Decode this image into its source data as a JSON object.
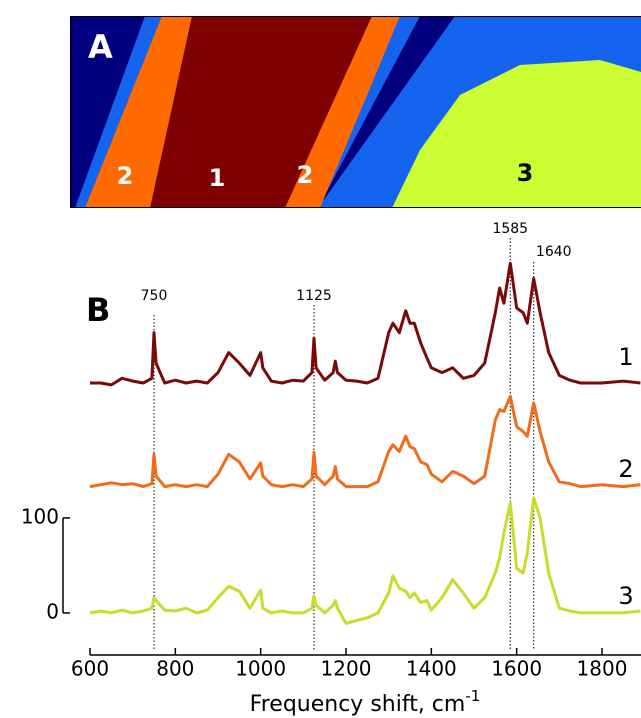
{
  "map": {
    "panel_label": "A",
    "region_labels": [
      "2",
      "1",
      "2",
      "3"
    ]
  },
  "chart_data": {
    "type": "line",
    "panel_label": "B",
    "xlabel": "Frequency shift, cm",
    "xlabel_superscript": "-1",
    "x": [
      600,
      625,
      650,
      675,
      700,
      725,
      745,
      750,
      755,
      775,
      800,
      825,
      850,
      875,
      900,
      925,
      950,
      975,
      1000,
      1005,
      1025,
      1050,
      1075,
      1100,
      1120,
      1125,
      1130,
      1150,
      1170,
      1175,
      1180,
      1200,
      1225,
      1250,
      1275,
      1300,
      1310,
      1325,
      1340,
      1350,
      1360,
      1375,
      1390,
      1400,
      1425,
      1450,
      1475,
      1500,
      1525,
      1550,
      1560,
      1570,
      1585,
      1600,
      1615,
      1625,
      1640,
      1655,
      1675,
      1700,
      1725,
      1750,
      1800,
      1850,
      1890
    ],
    "series": [
      {
        "name": "1",
        "color": "#7a0a0a",
        "values": [
          242,
          242,
          240,
          247,
          244,
          242,
          247,
          295,
          263,
          242,
          245,
          242,
          244,
          242,
          253,
          274,
          263,
          250,
          274,
          258,
          244,
          242,
          245,
          244,
          253,
          289,
          258,
          245,
          253,
          265,
          253,
          245,
          244,
          242,
          247,
          295,
          305,
          295,
          318,
          305,
          305,
          284,
          268,
          258,
          253,
          258,
          247,
          250,
          263,
          316,
          342,
          326,
          368,
          321,
          316,
          305,
          352,
          316,
          274,
          250,
          245,
          242,
          242,
          244,
          242
        ]
      },
      {
        "name": "2",
        "color": "#f26a1b",
        "values": [
          133,
          135,
          137,
          135,
          136,
          133,
          136,
          167,
          144,
          133,
          135,
          133,
          135,
          133,
          146,
          167,
          159,
          141,
          158,
          144,
          135,
          133,
          135,
          133,
          141,
          169,
          144,
          135,
          144,
          154,
          141,
          133,
          133,
          133,
          138,
          170,
          177,
          170,
          186,
          175,
          173,
          159,
          156,
          146,
          138,
          149,
          144,
          136,
          144,
          203,
          214,
          212,
          228,
          196,
          191,
          186,
          221,
          191,
          159,
          138,
          136,
          133,
          135,
          133,
          135
        ]
      },
      {
        "name": "3",
        "color": "#c9dc2c",
        "values": [
          0,
          2,
          0,
          3,
          0,
          2,
          5,
          16,
          13,
          3,
          2,
          5,
          0,
          3,
          16,
          28,
          23,
          5,
          24,
          5,
          0,
          2,
          0,
          0,
          5,
          18,
          8,
          0,
          8,
          13,
          5,
          -11,
          -8,
          -5,
          0,
          21,
          39,
          26,
          23,
          16,
          21,
          11,
          13,
          3,
          16,
          35,
          21,
          5,
          16,
          42,
          58,
          84,
          116,
          47,
          42,
          63,
          121,
          100,
          42,
          5,
          2,
          0,
          0,
          0,
          2
        ]
      }
    ],
    "reference_lines": [
      750,
      1125,
      1585,
      1640
    ],
    "xlim": [
      600,
      1890
    ],
    "xticks": [
      600,
      800,
      1000,
      1200,
      1400,
      1600,
      1800
    ],
    "ylim": [
      -39,
      382
    ],
    "yticks": [
      0,
      100
    ]
  }
}
